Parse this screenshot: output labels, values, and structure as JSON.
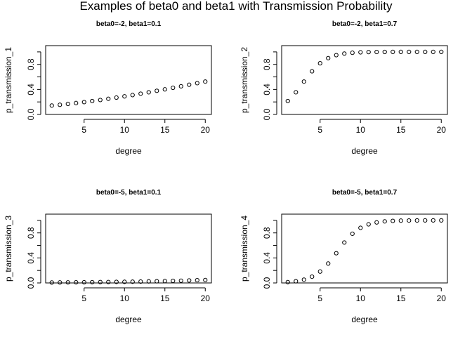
{
  "figure_title": "Examples of beta0 and beta1 with Transmission Probability",
  "chart_data": [
    {
      "type": "scatter",
      "title": "beta0=-2, beta1=0.1",
      "xlabel": "degree",
      "ylabel": "p_transmission_1",
      "xlim": [
        0.24,
        20.76
      ],
      "ylim": [
        0.0,
        1.1
      ],
      "xticks": [
        5,
        10,
        15,
        20
      ],
      "yticks": [
        0.0,
        0.4,
        0.8
      ],
      "x": [
        1,
        2,
        3,
        4,
        5,
        6,
        7,
        8,
        9,
        10,
        11,
        12,
        13,
        14,
        15,
        16,
        17,
        18,
        19,
        20
      ],
      "y": [
        0.142,
        0.154,
        0.168,
        0.182,
        0.197,
        0.214,
        0.231,
        0.25,
        0.269,
        0.289,
        0.31,
        0.332,
        0.354,
        0.378,
        0.401,
        0.426,
        0.45,
        0.475,
        0.5,
        0.525
      ],
      "marker": "open-circle",
      "grid": false,
      "legend": "none"
    },
    {
      "type": "scatter",
      "title": "beta0=-2, beta1=0.7",
      "xlabel": "degree",
      "ylabel": "p_transmission_2",
      "xlim": [
        0.24,
        20.76
      ],
      "ylim": [
        0.0,
        1.1
      ],
      "xticks": [
        5,
        10,
        15,
        20
      ],
      "yticks": [
        0.0,
        0.4,
        0.8
      ],
      "x": [
        1,
        2,
        3,
        4,
        5,
        6,
        7,
        8,
        9,
        10,
        11,
        12,
        13,
        14,
        15,
        16,
        17,
        18,
        19,
        20
      ],
      "y": [
        0.214,
        0.354,
        0.525,
        0.69,
        0.818,
        0.9,
        0.948,
        0.973,
        0.986,
        0.993,
        0.997,
        0.998,
        0.999,
        1.0,
        1.0,
        1.0,
        1.0,
        1.0,
        1.0,
        1.0
      ],
      "marker": "open-circle",
      "grid": false,
      "legend": "none"
    },
    {
      "type": "scatter",
      "title": "beta0=-5, beta1=0.1",
      "xlabel": "degree",
      "ylabel": "p_transmission_3",
      "xlim": [
        0.24,
        20.76
      ],
      "ylim": [
        0.0,
        1.1
      ],
      "xticks": [
        5,
        10,
        15,
        20
      ],
      "yticks": [
        0.0,
        0.4,
        0.8
      ],
      "x": [
        1,
        2,
        3,
        4,
        5,
        6,
        7,
        8,
        9,
        10,
        11,
        12,
        13,
        14,
        15,
        16,
        17,
        18,
        19,
        20
      ],
      "y": [
        0.007,
        0.008,
        0.009,
        0.01,
        0.011,
        0.012,
        0.014,
        0.015,
        0.017,
        0.018,
        0.02,
        0.022,
        0.025,
        0.027,
        0.03,
        0.033,
        0.036,
        0.04,
        0.044,
        0.047
      ],
      "marker": "open-circle",
      "grid": false,
      "legend": "none"
    },
    {
      "type": "scatter",
      "title": "beta0=-5, beta1=0.7",
      "xlabel": "degree",
      "ylabel": "p_transmission_4",
      "xlim": [
        0.24,
        20.76
      ],
      "ylim": [
        0.0,
        1.1
      ],
      "xticks": [
        5,
        10,
        15,
        20
      ],
      "yticks": [
        0.0,
        0.4,
        0.8
      ],
      "x": [
        1,
        2,
        3,
        4,
        5,
        6,
        7,
        8,
        9,
        10,
        11,
        12,
        13,
        14,
        15,
        16,
        17,
        18,
        19,
        20
      ],
      "y": [
        0.013,
        0.027,
        0.052,
        0.1,
        0.182,
        0.31,
        0.475,
        0.646,
        0.786,
        0.881,
        0.937,
        0.968,
        0.984,
        0.992,
        0.996,
        0.998,
        0.999,
        1.0,
        1.0,
        1.0
      ],
      "marker": "open-circle",
      "grid": false,
      "legend": "none"
    }
  ]
}
